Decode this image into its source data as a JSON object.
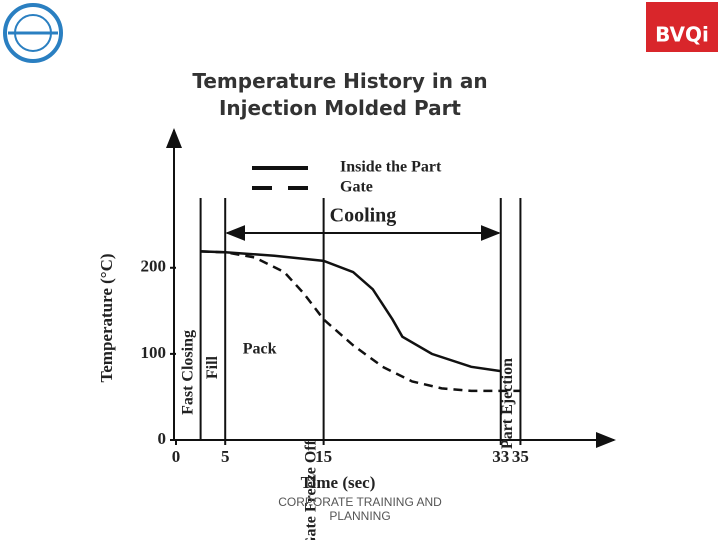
{
  "slide": {
    "logo_right": "BVQi",
    "footer": "CORPORATE TRAINING AND PLANNING"
  },
  "chart_data": {
    "type": "line",
    "title": "Temperature History in an Injection Molded Part",
    "x_label": "Time (sec)",
    "y_label": "Temperature (°C)",
    "xlim": [
      0,
      44
    ],
    "ylim": [
      0,
      360
    ],
    "xticks": [
      0,
      5,
      15,
      33,
      35
    ],
    "yticks": [
      0,
      100,
      200
    ],
    "series": [
      {
        "name": "Inside the Part",
        "color": "#111111",
        "dash": false,
        "x": [
          2.5,
          5,
          10,
          15,
          18,
          20,
          22,
          23,
          26,
          30,
          33
        ],
        "values": [
          219,
          218,
          214,
          208,
          195,
          175,
          140,
          120,
          100,
          85,
          80
        ]
      },
      {
        "name": "Gate",
        "color": "#111111",
        "dash": true,
        "x": [
          2.5,
          5,
          8,
          11,
          13,
          15,
          18,
          21,
          24,
          27,
          30,
          35
        ],
        "values": [
          219,
          218,
          212,
          195,
          170,
          140,
          110,
          85,
          68,
          60,
          57,
          57
        ]
      }
    ],
    "events": [
      2.5,
      5,
      15,
      33,
      35
    ],
    "event_labels": [
      {
        "text": "Fast Closing",
        "x": 2.5
      },
      {
        "text": "Fill",
        "x": 5
      },
      {
        "text": "Gate Freeze Off",
        "x": 15
      },
      {
        "text": "Part Ejection",
        "x": 35
      }
    ],
    "phase_label": {
      "text": "Pack",
      "x": 8.5,
      "y": 105
    },
    "span": {
      "text": "Cooling",
      "from": 5,
      "to": 33
    }
  }
}
